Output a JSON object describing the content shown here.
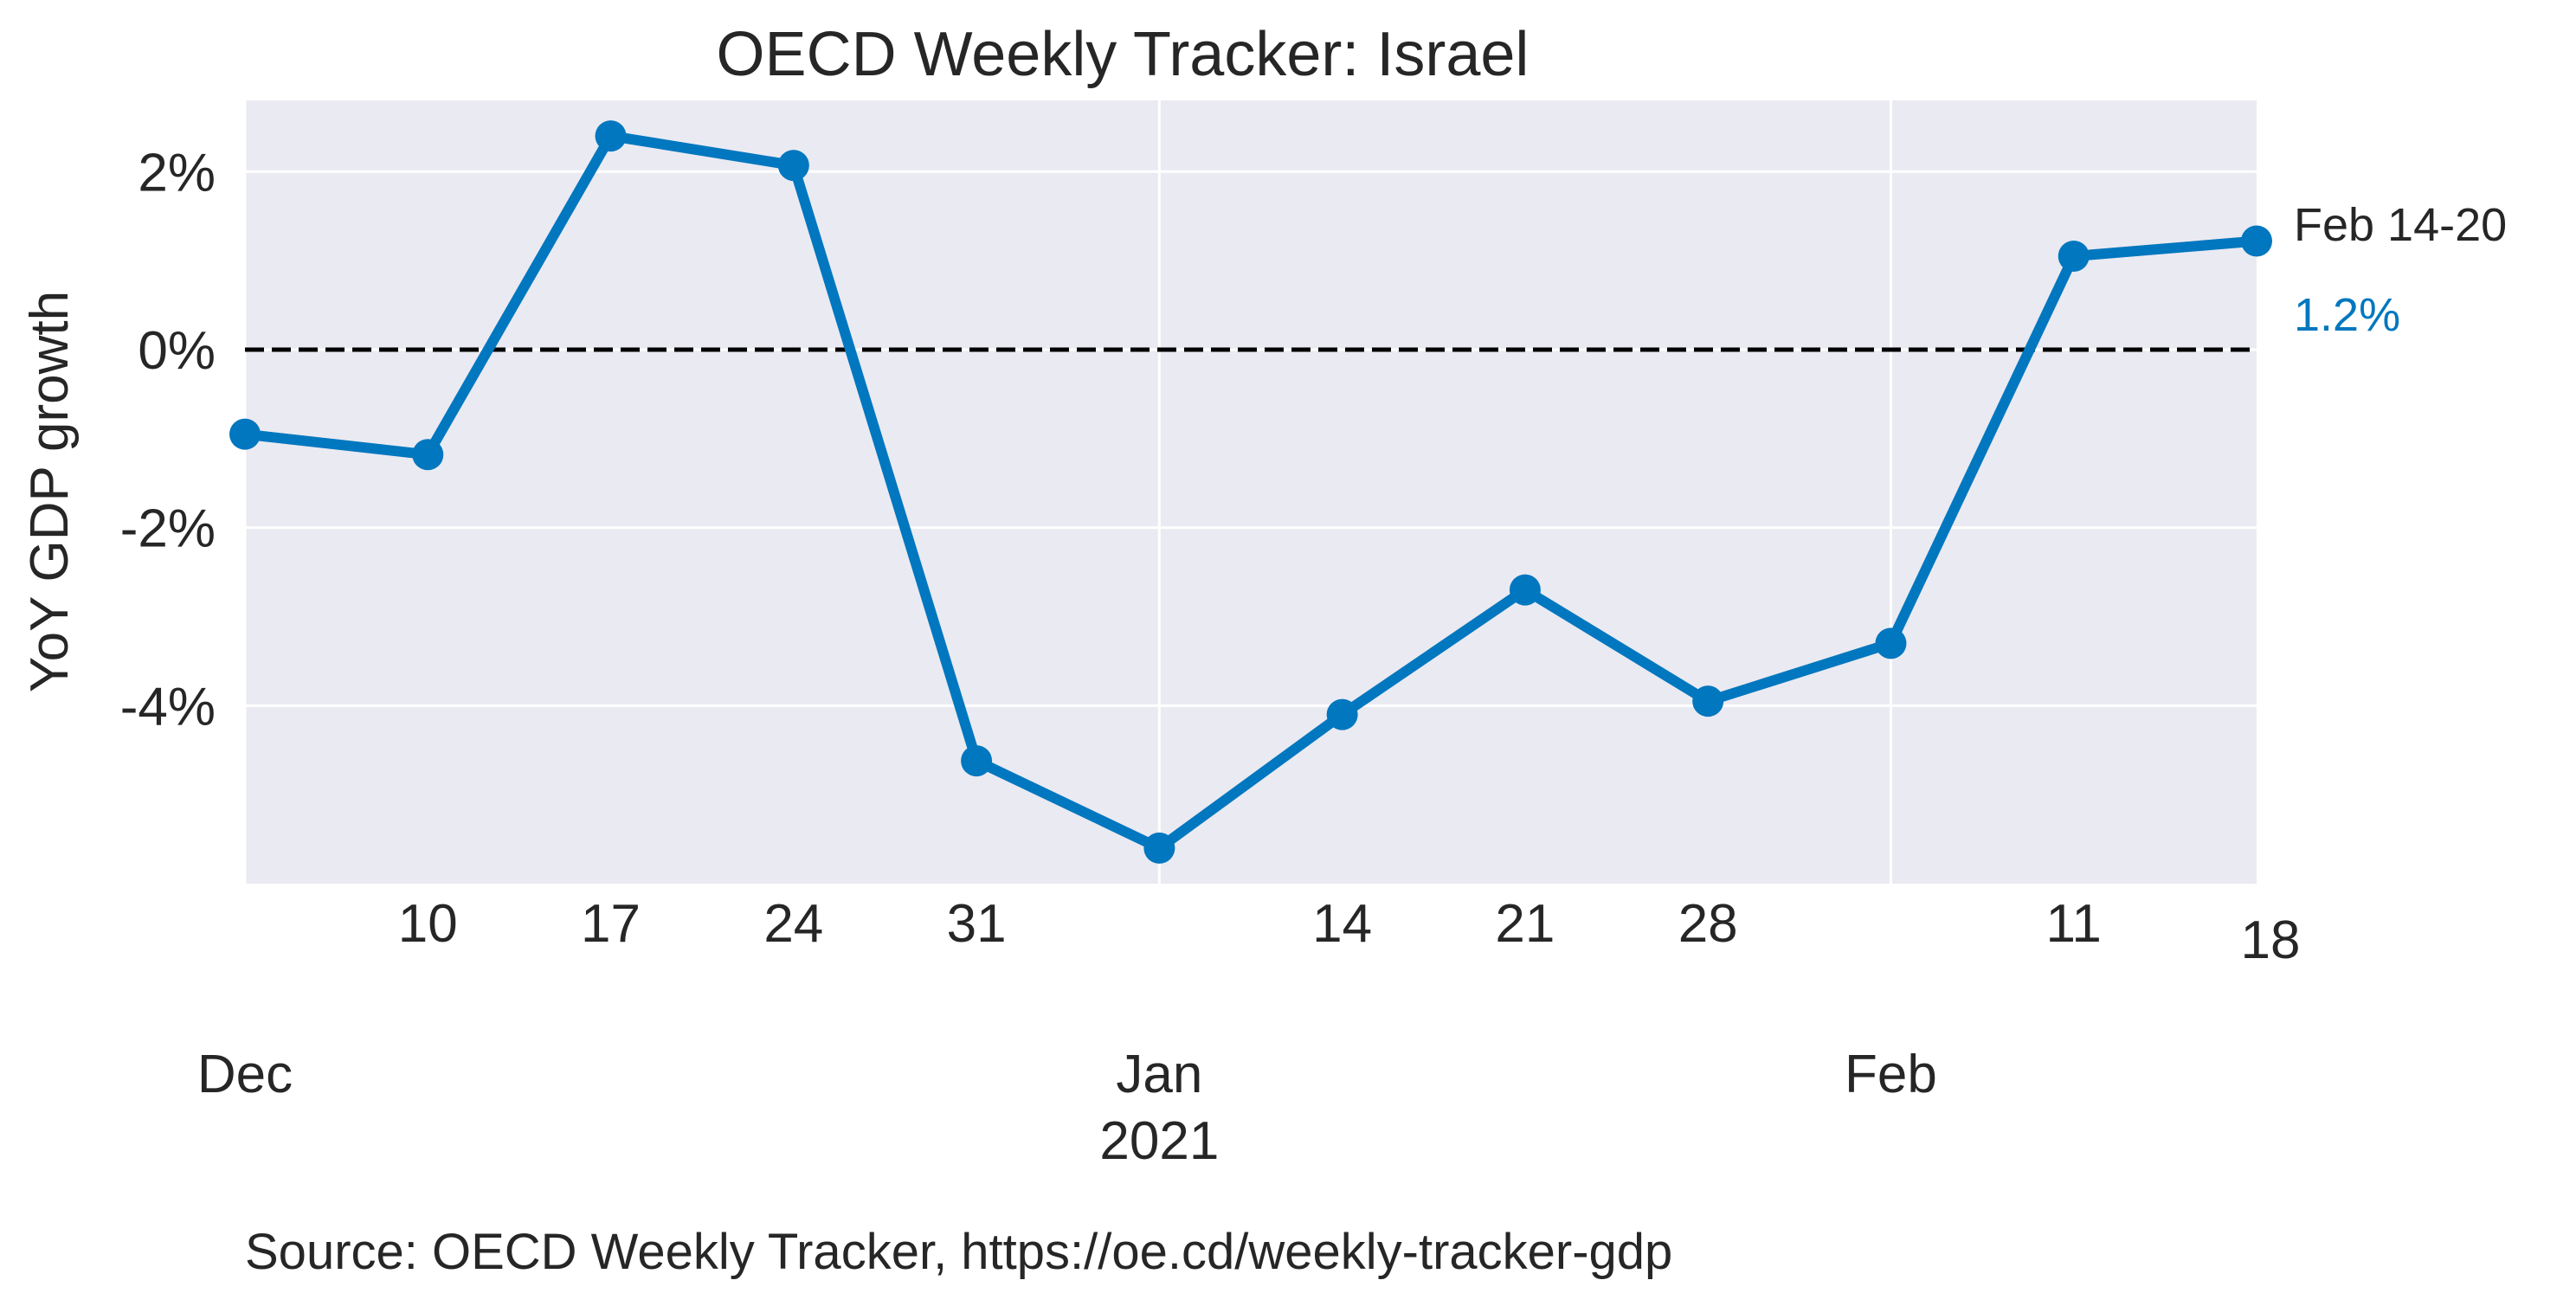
{
  "chart_data": {
    "type": "line",
    "title": "OECD Weekly Tracker: Israel",
    "xlabel": "",
    "ylabel": "YoY GDP growth",
    "source": "Source: OECD Weekly Tracker, https://oe.cd/weekly-tracker-gdp",
    "x": [
      "2020-12-03",
      "2020-12-10",
      "2020-12-17",
      "2020-12-24",
      "2020-12-31",
      "2021-01-07",
      "2021-01-14",
      "2021-01-21",
      "2021-01-28",
      "2021-02-04",
      "2021-02-11",
      "2021-02-18"
    ],
    "series": [
      {
        "values": [
          -0.95,
          -1.18,
          2.4,
          2.07,
          -4.62,
          -5.6,
          -4.1,
          -2.7,
          -3.95,
          -3.3,
          1.05,
          1.22
        ],
        "color": "#0177bf"
      }
    ],
    "xlim": [
      "2020-12-03",
      "2021-02-18"
    ],
    "ylim": [
      -6,
      2.8
    ],
    "y_ticks": [
      -4,
      -2,
      0,
      2
    ],
    "y_tick_labels": [
      "-4%",
      "-2%",
      "0%",
      "2%"
    ],
    "x_ticks_minor": [
      {
        "date": "2020-12-10",
        "label": "10"
      },
      {
        "date": "2020-12-17",
        "label": "17"
      },
      {
        "date": "2020-12-24",
        "label": "24"
      },
      {
        "date": "2020-12-31",
        "label": "31"
      },
      {
        "date": "2021-01-14",
        "label": "14"
      },
      {
        "date": "2021-01-21",
        "label": "21"
      },
      {
        "date": "2021-01-28",
        "label": "28"
      },
      {
        "date": "2021-02-11",
        "label": "11"
      },
      {
        "date": "2021-02-18",
        "label": "18"
      }
    ],
    "x_ticks_major": [
      {
        "date": "2020-12-03",
        "label": "Dec",
        "sublabel": ""
      },
      {
        "date": "2021-01-07",
        "label": "Jan",
        "sublabel": "2021"
      },
      {
        "date": "2021-02-04",
        "label": "Feb",
        "sublabel": ""
      }
    ],
    "reference_line": {
      "y": 0,
      "style": "dashed",
      "color": "#000000"
    },
    "annotation": {
      "period": "Feb 14-20",
      "value": "1.2%",
      "value_color": "#0177bf"
    },
    "grid": true,
    "background": "#eaeaf2"
  }
}
